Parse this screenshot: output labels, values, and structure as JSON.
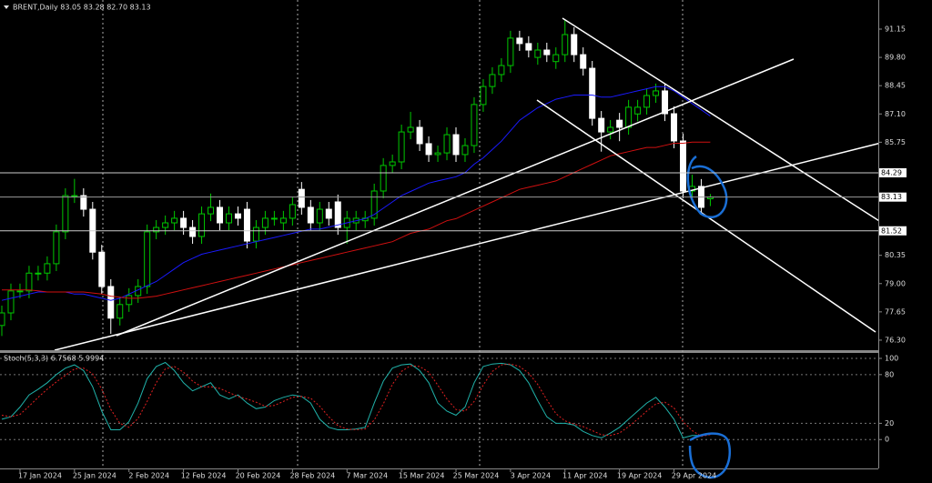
{
  "chart_data": [
    {
      "type": "candlestick",
      "title": "BRENT,Daily 83.05 83.28 82.70 83.13",
      "categories": [
        null,
        null,
        "17 Jan 2024",
        null,
        null,
        null,
        null,
        null,
        "25 Jan 2024",
        null,
        null,
        null,
        null,
        null,
        "2 Feb 2024",
        null,
        null,
        null,
        null,
        null,
        "12 Feb 2024",
        null,
        null,
        null,
        null,
        null,
        "20 Feb 2024",
        null,
        null,
        null,
        null,
        null,
        "28 Feb 2024",
        null,
        null,
        null,
        null,
        null,
        "7 Mar 2024",
        null,
        null,
        null,
        null,
        null,
        "15 Mar 2024",
        null,
        null,
        null,
        null,
        null,
        "25 Mar 2024",
        null,
        null,
        null,
        null,
        null,
        "3 Apr 2024",
        null,
        null,
        null,
        null,
        null,
        "11 Apr 2024",
        null,
        null,
        null,
        null,
        null,
        "19 Apr 2024",
        null,
        null,
        null,
        null,
        null,
        "29 Apr 2024",
        null,
        null,
        null,
        null
      ],
      "open": [
        77.0,
        77.6,
        78.65,
        78.65,
        79.5,
        79.5,
        79.95,
        81.47,
        83.2,
        83.2,
        82.55,
        80.5,
        78.86,
        77.35,
        78.0,
        78.43,
        78.86,
        81.47,
        81.68,
        81.9,
        82.12,
        81.68,
        81.25,
        82.33,
        82.64,
        81.9,
        82.33,
        82.55,
        81.03,
        81.68,
        82.12,
        81.9,
        82.12,
        83.5,
        82.64,
        81.9,
        82.55,
        82.9,
        81.68,
        81.9,
        82.0,
        82.12,
        83.42,
        84.64,
        84.81,
        86.24,
        86.46,
        85.68,
        85.16,
        85.24,
        86.11,
        85.16,
        85.59,
        87.55,
        88.41,
        88.98,
        89.41,
        90.72,
        90.46,
        89.8,
        90.15,
        89.6,
        89.93,
        90.89,
        89.93,
        89.28,
        86.89,
        86.24,
        86.8,
        86.46,
        87.1,
        87.42,
        87.98,
        88.2,
        87.11,
        85.81,
        83.42,
        83.64,
        83.05
      ],
      "high": [
        77.95,
        79.0,
        79.0,
        79.85,
        79.85,
        80.3,
        81.82,
        83.55,
        84.0,
        83.55,
        82.9,
        80.85,
        79.21,
        78.35,
        78.78,
        79.21,
        81.82,
        82.03,
        82.25,
        82.47,
        82.47,
        82.03,
        82.68,
        83.3,
        82.99,
        82.68,
        82.68,
        82.9,
        82.03,
        82.47,
        82.47,
        82.47,
        83.12,
        83.85,
        82.99,
        82.9,
        82.9,
        83.25,
        82.47,
        82.47,
        82.47,
        83.77,
        84.99,
        85.16,
        86.59,
        87.2,
        86.81,
        86.03,
        85.59,
        86.46,
        86.46,
        85.94,
        87.9,
        88.76,
        89.33,
        89.76,
        91.07,
        91.07,
        90.81,
        90.5,
        90.5,
        90.28,
        91.58,
        91.24,
        90.28,
        89.63,
        87.24,
        86.81,
        87.15,
        87.77,
        87.77,
        88.33,
        88.55,
        88.55,
        87.46,
        86.16,
        84.2,
        83.99,
        83.28
      ],
      "low": [
        76.5,
        77.25,
        78.3,
        78.3,
        79.15,
        79.15,
        79.6,
        81.12,
        82.85,
        82.2,
        80.15,
        78.51,
        76.6,
        77.0,
        77.65,
        78.08,
        78.51,
        81.12,
        81.33,
        81.55,
        81.33,
        80.9,
        80.9,
        81.98,
        81.55,
        81.55,
        81.77,
        80.68,
        80.68,
        81.33,
        81.77,
        81.55,
        81.77,
        82.29,
        81.55,
        81.55,
        81.77,
        81.33,
        80.9,
        81.55,
        81.65,
        81.77,
        83.07,
        84.29,
        84.46,
        85.89,
        85.33,
        84.81,
        84.81,
        84.89,
        84.81,
        84.81,
        85.24,
        87.2,
        88.06,
        88.63,
        89.06,
        90.11,
        89.8,
        89.45,
        89.58,
        89.25,
        89.58,
        89.58,
        88.93,
        86.54,
        85.3,
        85.89,
        85.8,
        86.11,
        86.75,
        87.07,
        87.63,
        86.76,
        85.46,
        83.07,
        82.9,
        82.29,
        82.7
      ],
      "close": [
        77.6,
        78.65,
        78.65,
        79.5,
        79.5,
        79.95,
        81.47,
        83.2,
        83.2,
        82.55,
        80.5,
        78.86,
        77.35,
        78.0,
        78.43,
        78.86,
        81.47,
        81.68,
        81.9,
        82.12,
        81.68,
        81.25,
        82.33,
        82.64,
        81.9,
        82.33,
        82.12,
        81.03,
        81.68,
        82.12,
        82.12,
        82.12,
        82.77,
        82.64,
        81.9,
        82.55,
        82.12,
        81.68,
        82.12,
        82.12,
        82.12,
        83.42,
        84.64,
        84.81,
        86.24,
        86.46,
        85.68,
        85.16,
        85.24,
        86.11,
        85.16,
        85.59,
        87.55,
        88.41,
        88.98,
        89.41,
        90.72,
        90.46,
        90.15,
        90.15,
        89.93,
        89.93,
        90.89,
        89.93,
        89.28,
        86.89,
        86.24,
        86.46,
        86.46,
        87.42,
        87.42,
        87.98,
        88.2,
        87.11,
        85.81,
        83.42,
        83.64,
        82.64,
        83.13
      ],
      "up_color": "#00c800",
      "down_color": "#ffffff",
      "series": [
        {
          "color": "#1a1aff",
          "values": [
            78.2,
            78.3,
            78.4,
            78.5,
            78.6,
            78.6,
            78.6,
            78.6,
            78.5,
            78.5,
            78.4,
            78.3,
            78.2,
            78.3,
            78.5,
            78.7,
            78.9,
            79.1,
            79.4,
            79.7,
            80.0,
            80.2,
            80.4,
            80.5,
            80.6,
            80.7,
            80.8,
            80.9,
            81.0,
            81.1,
            81.2,
            81.3,
            81.4,
            81.5,
            81.6,
            81.6,
            81.7,
            81.8,
            81.9,
            82.0,
            82.1,
            82.3,
            82.6,
            82.9,
            83.2,
            83.4,
            83.6,
            83.8,
            83.9,
            84.0,
            84.1,
            84.3,
            84.7,
            85.0,
            85.4,
            85.8,
            86.3,
            86.8,
            87.1,
            87.4,
            87.6,
            87.8,
            87.9,
            88.0,
            88.0,
            88.0,
            87.9,
            87.9,
            88.0,
            88.1,
            88.2,
            88.3,
            88.4,
            88.4,
            88.2,
            87.9,
            87.6,
            87.3,
            87.0
          ]
        },
        {
          "color": "#d01010",
          "values": [
            78.7,
            78.7,
            78.7,
            78.7,
            78.65,
            78.6,
            78.6,
            78.6,
            78.6,
            78.6,
            78.55,
            78.5,
            78.4,
            78.35,
            78.3,
            78.3,
            78.35,
            78.4,
            78.5,
            78.6,
            78.7,
            78.8,
            78.9,
            79.0,
            79.1,
            79.2,
            79.3,
            79.4,
            79.5,
            79.6,
            79.7,
            79.8,
            79.9,
            80.0,
            80.1,
            80.2,
            80.3,
            80.4,
            80.5,
            80.6,
            80.7,
            80.8,
            80.9,
            81.0,
            81.2,
            81.4,
            81.5,
            81.6,
            81.8,
            82.0,
            82.1,
            82.3,
            82.5,
            82.7,
            82.9,
            83.1,
            83.3,
            83.5,
            83.6,
            83.7,
            83.8,
            83.9,
            84.1,
            84.3,
            84.5,
            84.7,
            84.9,
            85.1,
            85.2,
            85.3,
            85.4,
            85.5,
            85.5,
            85.6,
            85.7,
            85.7,
            85.75,
            85.75,
            85.75
          ]
        }
      ],
      "hlines": [
        84.29,
        81.52
      ],
      "ylim": [
        75.82,
        92.54
      ],
      "yticks": [
        91.15,
        {
          "value": 89.8,
          "label": "89.80"
        },
        88.45,
        {
          "value": 87.1,
          "label": "87.10"
        },
        85.75,
        80.35,
        {
          "value": 79,
          "label": "79.00"
        },
        77.65,
        {
          "value": 76.3,
          "label": "76.30"
        }
      ]
    },
    {
      "type": "line",
      "title": "Stoch(5,3,3) 6.7568 5.9994",
      "series": [
        {
          "color": "#20b2aa",
          "style": "solid",
          "values": [
            25,
            28,
            40,
            55,
            62,
            70,
            80,
            88,
            92,
            85,
            65,
            35,
            12,
            12,
            22,
            45,
            75,
            90,
            95,
            85,
            70,
            60,
            65,
            70,
            55,
            50,
            55,
            45,
            38,
            40,
            48,
            52,
            55,
            53,
            45,
            25,
            15,
            12,
            12,
            13,
            15,
            45,
            72,
            88,
            92,
            93,
            85,
            70,
            45,
            35,
            30,
            40,
            70,
            90,
            93,
            94,
            92,
            85,
            70,
            48,
            28,
            20,
            20,
            18,
            10,
            5,
            2,
            8,
            15,
            25,
            35,
            45,
            52,
            40,
            25,
            2,
            5,
            5,
            6.7568
          ]
        },
        {
          "color": "#e02020",
          "style": "dotted",
          "values": [
            30,
            28,
            31,
            41,
            52,
            62,
            71,
            79,
            87,
            88,
            81,
            62,
            37,
            20,
            15,
            26,
            47,
            70,
            87,
            90,
            83,
            72,
            65,
            65,
            63,
            58,
            53,
            50,
            46,
            41,
            42,
            47,
            52,
            53,
            51,
            41,
            28,
            17,
            13,
            12,
            13,
            24,
            44,
            68,
            84,
            91,
            90,
            83,
            67,
            50,
            37,
            35,
            47,
            67,
            84,
            92,
            93,
            90,
            82,
            68,
            49,
            32,
            23,
            19,
            16,
            11,
            6,
            5,
            8,
            16,
            25,
            35,
            44,
            46,
            39,
            22,
            11,
            4,
            5.9994
          ]
        }
      ],
      "ylim": [
        -35.6,
        105.6
      ],
      "yticks": [
        100,
        80,
        20,
        0
      ]
    }
  ]
}
